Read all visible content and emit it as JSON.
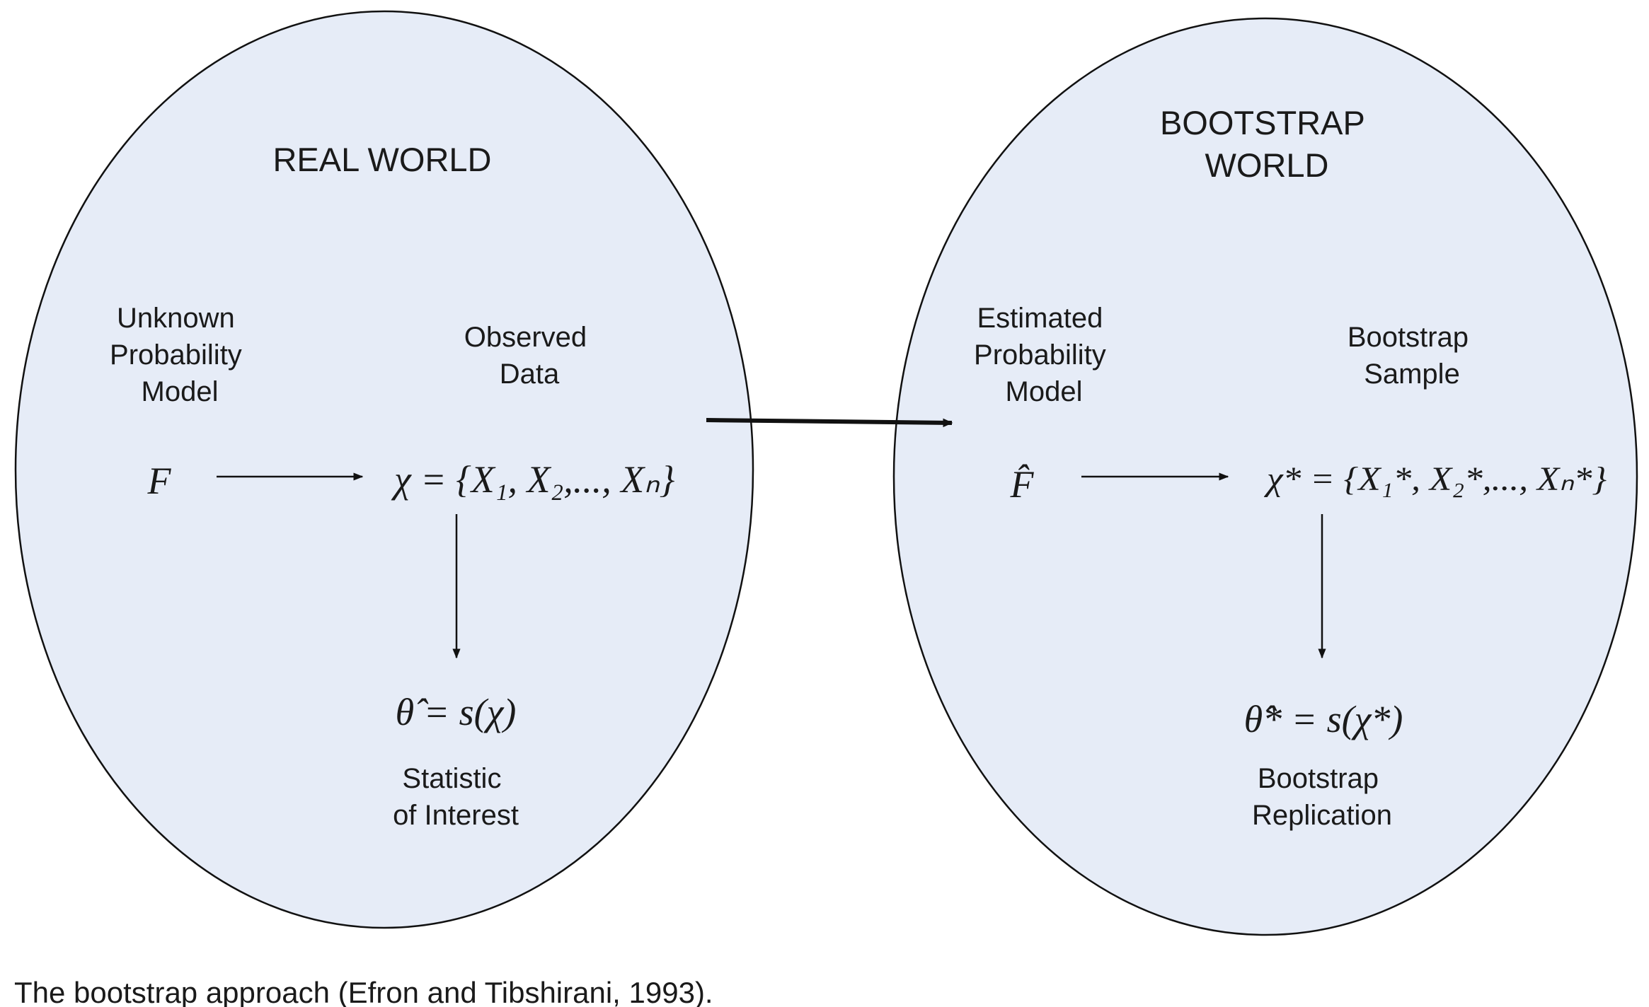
{
  "colors": {
    "ellipse_fill": "#e6ecf7",
    "stroke": "#111111",
    "text": "#1a1a1a"
  },
  "real_world": {
    "title": "REAL WORLD",
    "model_label": [
      "Unknown",
      "Probability",
      "Model"
    ],
    "data_label": [
      "Observed",
      "Data"
    ],
    "model_symbol": "F",
    "data_formula": "χ = {X₁, X₂,..., Xₙ}",
    "statistic_formula": "θ̂ = s(χ)",
    "statistic_label": [
      "Statistic",
      "of Interest"
    ]
  },
  "bootstrap_world": {
    "title": [
      "BOOTSTRAP",
      "WORLD"
    ],
    "model_label": [
      "Estimated",
      "Probability",
      "Model"
    ],
    "data_label": [
      "Bootstrap",
      "Sample"
    ],
    "model_symbol": "F̂",
    "data_formula": "χ* = {X₁*, X₂*,..., Xₙ*}",
    "statistic_formula": "θ̂* = s(χ*)",
    "statistic_label": [
      "Bootstrap",
      "Replication"
    ]
  },
  "caption": "The bootstrap approach (Efron and Tibshirani, 1993)."
}
